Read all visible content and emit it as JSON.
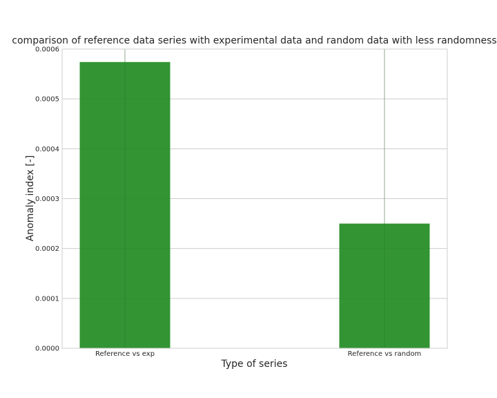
{
  "chart_data": {
    "type": "bar",
    "title": "comparison of reference data series with experimental data and random data with less randomness",
    "xlabel": "Type of series",
    "ylabel": "Anomaly index [-]",
    "categories": [
      "Reference vs exp",
      "Reference vs random"
    ],
    "values": [
      0.000574,
      0.00025
    ],
    "ylim": [
      0,
      0.0006
    ],
    "yticks": [
      "0.0000",
      "0.0001",
      "0.0002",
      "0.0003",
      "0.0004",
      "0.0005",
      "0.0006"
    ],
    "grid": true,
    "legend": "none",
    "bar_color": "#228B22",
    "grid_color": "#cccccc"
  }
}
